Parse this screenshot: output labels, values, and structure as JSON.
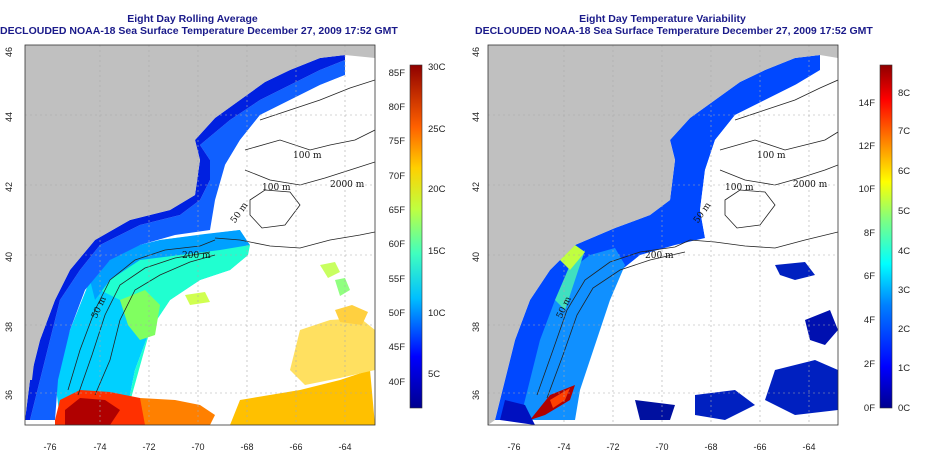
{
  "left": {
    "title_line1": "Eight Day Rolling Average",
    "title_line2": "DECLOUDED NOAA-18 Sea Surface Temperature December 27, 2009 17:52 GMT",
    "x_ticks": [
      "-76",
      "-74",
      "-72",
      "-70",
      "-68",
      "-66",
      "-64"
    ],
    "y_ticks": [
      "46",
      "44",
      "42",
      "40",
      "38",
      "36"
    ],
    "contours": [
      "100 m",
      "2000 m",
      "100 m",
      "50 m",
      "200 m",
      "50 m"
    ],
    "colorbar_f": [
      "85F",
      "80F",
      "75F",
      "70F",
      "65F",
      "60F",
      "55F",
      "50F",
      "45F",
      "40F"
    ],
    "colorbar_c": [
      "30C",
      "25C",
      "20C",
      "15C",
      "10C",
      "5C"
    ]
  },
  "right": {
    "title_line1": "Eight Day Temperature Variability",
    "title_line2": "DECLOUDED NOAA-18 Sea Surface Temperature December 27, 2009 17:52 GMT",
    "x_ticks": [
      "-76",
      "-74",
      "-72",
      "-70",
      "-68",
      "-66",
      "-64"
    ],
    "y_ticks": [
      "46",
      "44",
      "42",
      "40",
      "38",
      "36"
    ],
    "contours": [
      "100 m",
      "2000 m",
      "100 m",
      "50 m",
      "200 m",
      "50 m"
    ],
    "colorbar_f": [
      "14F",
      "12F",
      "10F",
      "8F",
      "6F",
      "4F",
      "2F",
      "0F"
    ],
    "colorbar_c": [
      "8C",
      "7C",
      "6C",
      "5C",
      "4C",
      "3C",
      "2C",
      "1C",
      "0C"
    ]
  },
  "colors": {
    "land": "#c0c0c0",
    "title": "#1a1a8a"
  }
}
